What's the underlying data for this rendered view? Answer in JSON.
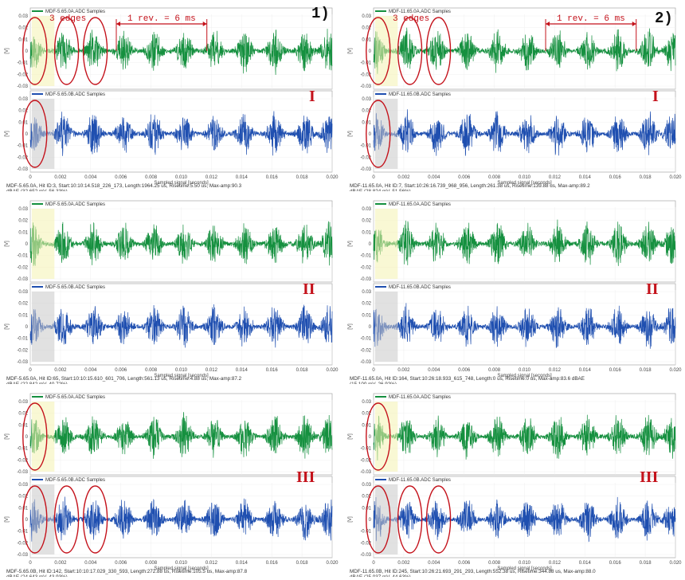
{
  "panel_labels": [
    "1)",
    "2)"
  ],
  "colors": {
    "top_wave": "#15903f",
    "bottom_wave": "#1f4fb0",
    "highlight": "#c4121b"
  },
  "annotations": {
    "edges": "3 edges",
    "revolution": "1 rev. = 6 ms"
  },
  "blocks": [
    {
      "id": "1-I",
      "roman": "I",
      "top_title": "MDF-5.65.0A.ADC Samples",
      "bottom_title": "MDF-5.65.0B.ADC Samples",
      "info1": "MDF-5.65.0A, Hit ID:3, Start:10:10:14.518_226_173, Length:1964.25 us, Risetime:5.50 us, Max-amp:90.3",
      "info2": "dBAE (32.652 mV, 56.33%)"
    },
    {
      "id": "2-I",
      "roman": "I",
      "top_title": "MDF-11.65.0A.ADC Samples",
      "bottom_title": "MDF-11.65.0B.ADC Samples",
      "info1": "MDF-11.65.0A, Hit ID:7, Start:10:26:16.739_968_956, Length:261.38 us, Risetime:139.88 us, Max-amp:89.2",
      "info2": "dBAE (28.824 mV, 51.56%)"
    },
    {
      "id": "1-II",
      "roman": "II",
      "top_title": "MDF-5.65.0A.ADC Samples",
      "bottom_title": "MDF-5.65.0B.ADC Samples",
      "info1": "MDF-5.65.0A, Hit ID:65, Start:10:10:15.610_601_706, Length:561.13 us, Risetime:4.88 us, Max-amp:87.2",
      "info2": "dBAE (22.842 mV, 40.72%)"
    },
    {
      "id": "2-II",
      "roman": "II",
      "top_title": "MDF-11.65.0A.ADC Samples",
      "bottom_title": "MDF-11.65.0B.ADC Samples",
      "info1": "MDF-11.65.0A, Hit ID:164, Start:10:26:18.933_615_748, Length:0 us, Risetime:0 us, Max-amp:83.6 dBAE",
      "info2": "(15.100 mV, 26.92%)"
    },
    {
      "id": "1-III",
      "roman": "III",
      "top_title": "MDF-5.65.0A.ADC Samples",
      "bottom_title": "MDF-5.65.0B.ADC Samples",
      "info1": "MDF-5.65.0B, Hit ID:142, Start:10:10:17.029_330_593, Length:272.88 us, Risetime:105.5 us, Max-amp:87.8",
      "info2": "dBAE (24.643 mV, 43.93%)"
    },
    {
      "id": "2-III",
      "roman": "III",
      "top_title": "MDF-11.65.0A.ADC Samples",
      "bottom_title": "MDF-11.65.0B.ADC Samples",
      "info1": "MDF-11.65.0B, Hit ID:245, Start:10:26:21.693_291_293, Length:552.38 us, Risetime:344.88 us, Max-amp:88.0",
      "info2": "dBAE (25.037 mV, 44.63%)"
    }
  ],
  "chart_data": {
    "type": "line",
    "xlabel": "Sampled signal [seconds]",
    "ylabel": "[V]",
    "xlim": [
      0,
      0.02
    ],
    "ylim": [
      -0.03,
      0.03
    ],
    "x_ticks": [
      "0",
      "0.002",
      "0.004",
      "0.006",
      "0.008",
      "0.010",
      "0.012",
      "0.014",
      "0.016",
      "0.018",
      "0.020"
    ],
    "y_ticks": [
      "0.03",
      "0.02",
      "0.01",
      "0",
      "-0.01",
      "-0.02",
      "-0.03"
    ],
    "burst_period_s": 0.006,
    "series": [
      {
        "name": "MDF-5.65.0A.ADC Samples",
        "bursts_s": [
          0.0002,
          0.0022,
          0.0042,
          0.0062,
          0.0082,
          0.0102,
          0.0122,
          0.0142,
          0.0162,
          0.0182,
          0.0198
        ]
      },
      {
        "name": "MDF-5.65.0B.ADC Samples",
        "bursts_s": [
          0.0002,
          0.0022,
          0.0042,
          0.0062,
          0.0082,
          0.0102,
          0.0122,
          0.0142,
          0.0162,
          0.0182,
          0.0198
        ]
      },
      {
        "name": "MDF-11.65.0A.ADC Samples",
        "bursts_s": [
          0.0002,
          0.0022,
          0.0042,
          0.0062,
          0.0082,
          0.0102,
          0.0122,
          0.0142,
          0.0162,
          0.0182,
          0.0198
        ]
      },
      {
        "name": "MDF-11.65.0B.ADC Samples",
        "bursts_s": [
          0.0002,
          0.0022,
          0.0042,
          0.0062,
          0.0082,
          0.0102,
          0.0122,
          0.0142,
          0.0162,
          0.0182,
          0.0198
        ]
      }
    ]
  }
}
